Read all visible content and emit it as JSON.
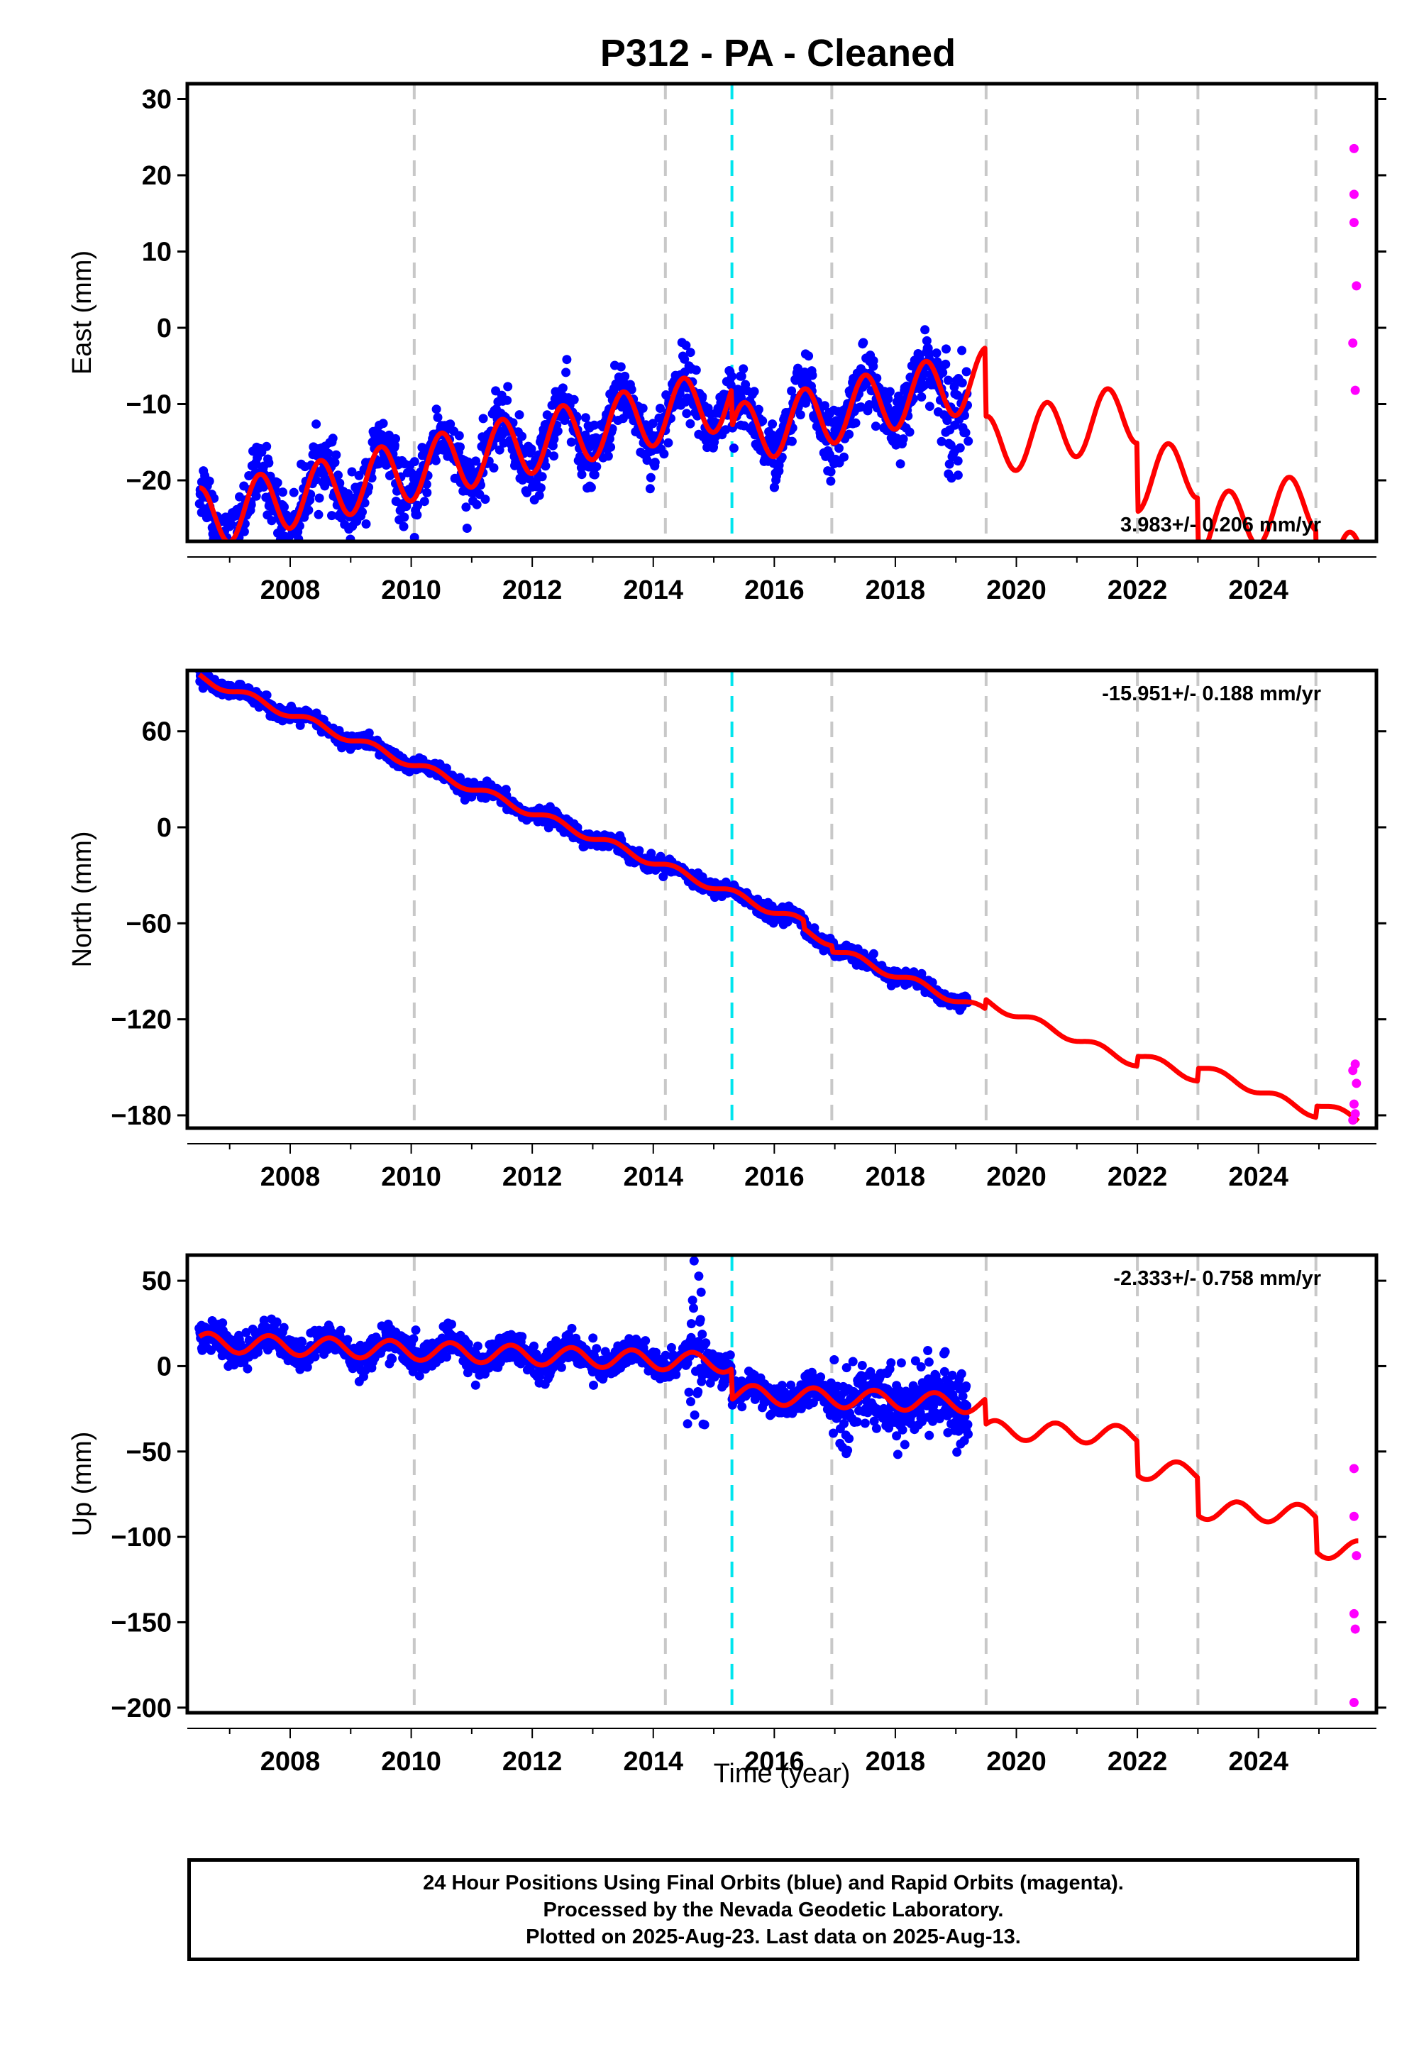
{
  "title": "P312  - PA - Cleaned",
  "colors": {
    "final_orbits": "#0000ff",
    "rapid_orbits": "#ff00ff",
    "model_fit": "#ff0000",
    "event_line": "#c8c8c8",
    "equipment_line": "#00e5ee"
  },
  "footer": {
    "line1": "24 Hour Positions Using Final Orbits (blue) and Rapid Orbits (magenta).",
    "line2": "Processed by the Nevada Geodetic Laboratory.",
    "line3": "Plotted on 2025-Aug-23. Last data on 2025-Aug-13."
  },
  "chart_data": [
    {
      "type": "scatter",
      "panel": "east",
      "ylabel": "East (mm)",
      "xlabel": "",
      "xlim": [
        2006.3,
        2025.95
      ],
      "ylim": [
        -28,
        32
      ],
      "yticks": [
        -20,
        -10,
        0,
        10,
        20,
        30
      ],
      "xticks": [
        2008,
        2010,
        2012,
        2014,
        2016,
        2018,
        2020,
        2022,
        2024
      ],
      "rate_label": "3.983+/- 0.206 mm/yr",
      "rate_position": "bottom-right",
      "gray_lines": [
        2010.05,
        2014.2,
        2016.95,
        2019.5,
        2022.0,
        2023.0,
        2024.95
      ],
      "cyan_lines": [
        2015.3
      ],
      "offsets": [
        [
          2015.3,
          -5
        ],
        [
          2019.5,
          -9
        ],
        [
          2022.0,
          -9
        ],
        [
          2023.0,
          -8
        ],
        [
          2024.95,
          -9
        ]
      ],
      "model": {
        "start_x": 2006.5,
        "start_y": -25,
        "rate": 1.8,
        "annual_amp": 4,
        "phase": 0.25,
        "fit_end": 2025.65
      },
      "final_orbits": {
        "x_range": [
          2006.5,
          2019.2
        ],
        "scatter": 2.0,
        "n": 1500
      },
      "rapid_orbits": [
        [
          2025.58,
          23.5
        ],
        [
          2025.58,
          17.5
        ],
        [
          2025.58,
          13.8
        ],
        [
          2025.62,
          5.5
        ],
        [
          2025.56,
          -2
        ],
        [
          2025.6,
          -8.2
        ]
      ]
    },
    {
      "type": "scatter",
      "panel": "north",
      "ylabel": "North (mm)",
      "xlabel": "",
      "xlim": [
        2006.3,
        2025.95
      ],
      "ylim": [
        -188,
        98
      ],
      "yticks": [
        -180,
        -120,
        -60,
        0,
        60
      ],
      "xticks": [
        2008,
        2010,
        2012,
        2014,
        2016,
        2018,
        2020,
        2022,
        2024
      ],
      "rate_label": "-15.951+/- 0.188 mm/yr",
      "rate_position": "top-right",
      "gray_lines": [
        2010.05,
        2014.2,
        2016.95,
        2019.5,
        2022.0,
        2023.0,
        2024.95
      ],
      "cyan_lines": [
        2015.3
      ],
      "offsets": [
        [
          2016.5,
          -5
        ],
        [
          2016.95,
          -4
        ],
        [
          2019.5,
          6
        ],
        [
          2022.0,
          6
        ],
        [
          2023.0,
          8
        ],
        [
          2024.95,
          7
        ]
      ],
      "model": {
        "start_x": 2006.5,
        "start_y": 94,
        "rate": -15.4,
        "annual_amp": 2.5,
        "phase": 0.1,
        "fit_end": 2025.65
      },
      "final_orbits": {
        "x_range": [
          2006.5,
          2019.2
        ],
        "scatter": 2.3,
        "n": 1500
      },
      "rapid_orbits": [
        [
          2025.6,
          -148
        ],
        [
          2025.56,
          -152
        ],
        [
          2025.62,
          -160
        ],
        [
          2025.58,
          -173
        ],
        [
          2025.6,
          -179
        ],
        [
          2025.56,
          -183
        ]
      ]
    },
    {
      "type": "scatter",
      "panel": "up",
      "ylabel": "Up (mm)",
      "xlabel": "Time (year)",
      "xlim": [
        2006.3,
        2025.95
      ],
      "ylim": [
        -203,
        65
      ],
      "yticks": [
        -200,
        -150,
        -100,
        -50,
        0,
        50
      ],
      "xticks": [
        2008,
        2010,
        2012,
        2014,
        2016,
        2018,
        2020,
        2022,
        2024
      ],
      "rate_label": "-2.333+/- 0.758 mm/yr",
      "rate_position": "top-right",
      "gray_lines": [
        2010.05,
        2014.2,
        2016.95,
        2019.5,
        2022.0,
        2023.0,
        2024.95
      ],
      "cyan_lines": [
        2015.3
      ],
      "offsets": [
        [
          2015.3,
          -18
        ],
        [
          2019.5,
          -15
        ],
        [
          2022.0,
          -20
        ],
        [
          2023.0,
          -22
        ],
        [
          2024.95,
          -20
        ]
      ],
      "model": {
        "start_x": 2006.5,
        "start_y": 14,
        "rate": -1.4,
        "annual_amp": 5.5,
        "phase": 0.4,
        "fit_end": 2025.65
      },
      "final_orbits": {
        "x_range": [
          2006.5,
          2019.2
        ],
        "scatter": 4.5,
        "n": 1600
      },
      "rapid_orbits": [
        [
          2025.58,
          -60
        ],
        [
          2025.58,
          -88
        ],
        [
          2025.62,
          -111
        ],
        [
          2025.58,
          -145
        ],
        [
          2025.6,
          -154
        ],
        [
          2025.58,
          -197
        ]
      ]
    }
  ]
}
